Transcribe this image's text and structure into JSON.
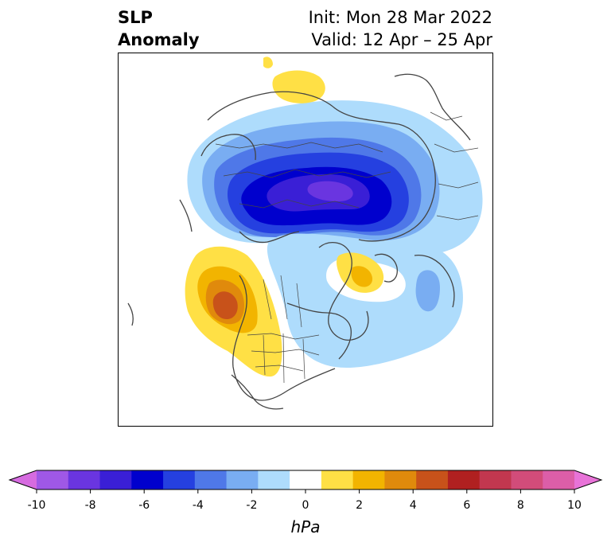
{
  "title": {
    "left_line1": "SLP",
    "left_line2": "Anomaly",
    "right_line1": "Init: Mon 28 Mar 2022",
    "right_line2": "Valid: 12 Apr – 25 Apr"
  },
  "map": {
    "projection": "north-polar-stereographic",
    "coastline_color": "#444444",
    "features": [
      {
        "name": "arctic-negative-anomaly",
        "min_value_hPa": -6
      },
      {
        "name": "north-pacific-positive-anomaly",
        "max_value_hPa": 5
      },
      {
        "name": "greenland-positive-anomaly",
        "max_value_hPa": 2
      },
      {
        "name": "north-atlantic-negative-anomaly",
        "min_value_hPa": -3
      }
    ]
  },
  "colorbar": {
    "units": "hPa",
    "tick_labels": [
      "-10",
      "-8",
      "-6",
      "-4",
      "-2",
      "0",
      "2",
      "4",
      "6",
      "8",
      "10"
    ],
    "extend": "both",
    "colors": [
      "#9f58e6",
      "#6a35e0",
      "#3a1fd6",
      "#0000cd",
      "#2540e0",
      "#4f78e8",
      "#79adf2",
      "#aedcfc",
      "#ffffff",
      "#ffe045",
      "#f2b400",
      "#e08a0c",
      "#c8521a",
      "#b02020",
      "#c2374f",
      "#d24c7a",
      "#dc5ea8"
    ],
    "under_color": "#d66be0",
    "over_color": "#e873d8"
  }
}
